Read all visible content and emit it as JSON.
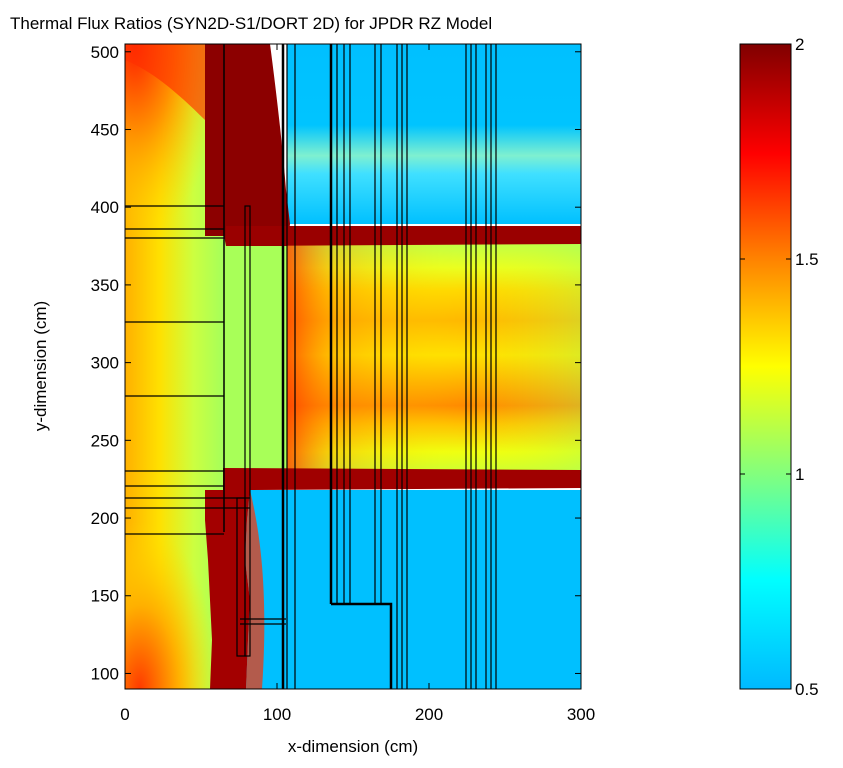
{
  "chart_data": {
    "type": "heatmap",
    "title": "Thermal Flux Ratios (SYN2D-S1/DORT 2D) for JPDR RZ Model",
    "xlabel": "x-dimension (cm)",
    "ylabel": "y-dimension (cm)",
    "xlim": [
      0,
      300
    ],
    "ylim": [
      90,
      505
    ],
    "xticks": [
      0,
      100,
      200,
      300
    ],
    "yticks": [
      100,
      150,
      200,
      250,
      300,
      350,
      400,
      450,
      500
    ],
    "colorbar": {
      "range": [
        0.5,
        2
      ],
      "ticks": [
        0.5,
        1,
        1.5,
        2
      ],
      "colormap": [
        "#00b9ff",
        "#00ffff",
        "#80ff80",
        "#ffff00",
        "#ff8000",
        "#ff0000",
        "#800000"
      ]
    },
    "regions": [
      {
        "x": [
          0,
          62
        ],
        "y": [
          90,
          505
        ],
        "ratio": 1.05
      },
      {
        "x": [
          62,
          78
        ],
        "y": [
          375,
          505
        ],
        "ratio": 2.0
      },
      {
        "x": [
          62,
          105
        ],
        "y": [
          215,
          232
        ],
        "ratio": 2.0
      },
      {
        "x": [
          60,
          80
        ],
        "y": [
          90,
          232
        ],
        "ratio": 2.0
      },
      {
        "x": [
          105,
          300
        ],
        "y": [
          372,
          386
        ],
        "ratio": 2.0
      },
      {
        "x": [
          105,
          300
        ],
        "y": [
          222,
          232
        ],
        "ratio": 1.95
      },
      {
        "x": [
          105,
          300
        ],
        "y": [
          232,
          375
        ],
        "ratio": 1.25
      },
      {
        "x": [
          105,
          300
        ],
        "y": [
          386,
          505
        ],
        "ratio": 0.5
      },
      {
        "x": [
          80,
          300
        ],
        "y": [
          90,
          215
        ],
        "ratio": 0.5
      }
    ]
  }
}
